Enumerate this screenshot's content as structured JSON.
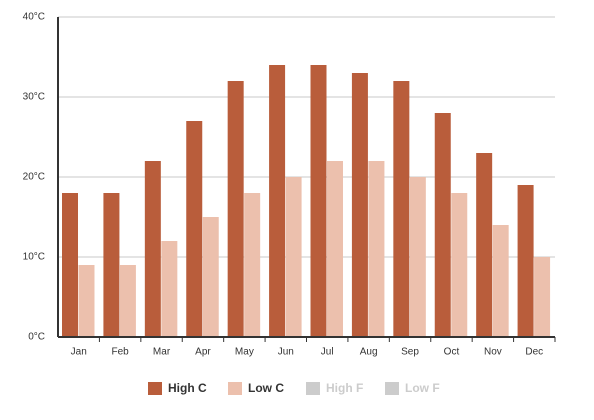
{
  "chart_data": {
    "type": "bar",
    "categories": [
      "Jan",
      "Feb",
      "Mar",
      "Apr",
      "May",
      "Jun",
      "Jul",
      "Aug",
      "Sep",
      "Oct",
      "Nov",
      "Dec"
    ],
    "series": [
      {
        "name": "High C",
        "color": "#b95d3b",
        "values": [
          18,
          18,
          22,
          27,
          32,
          34,
          34,
          33,
          32,
          28,
          23,
          19
        ]
      },
      {
        "name": "Low C",
        "color": "#ecc0ad",
        "values": [
          9,
          9,
          12,
          15,
          18,
          20,
          22,
          22,
          20,
          18,
          14,
          10
        ]
      }
    ],
    "legend_inactive": [
      "High F",
      "Low F"
    ],
    "ylim": [
      0,
      40
    ],
    "yticks": [
      {
        "value": 0,
        "label": "0°C"
      },
      {
        "value": 10,
        "label": "10°C"
      },
      {
        "value": 20,
        "label": "20°C"
      },
      {
        "value": 30,
        "label": "30°C"
      },
      {
        "value": 40,
        "label": "40°C"
      }
    ],
    "grid": true
  }
}
